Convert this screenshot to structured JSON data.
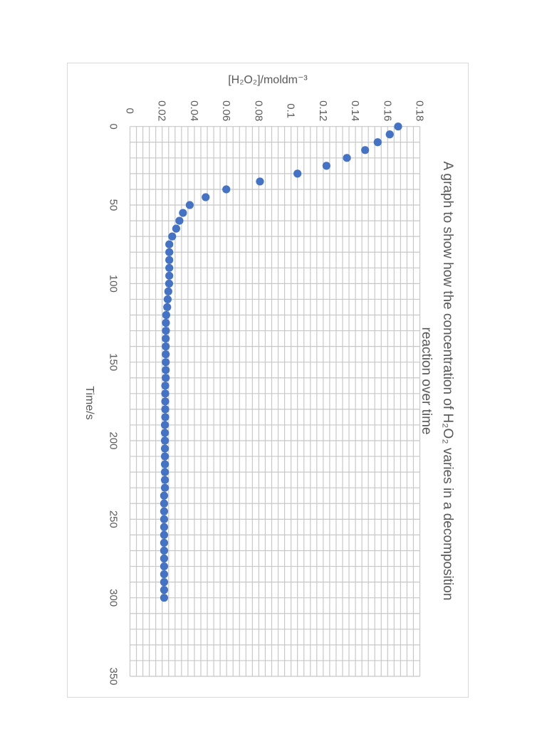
{
  "chart_data": {
    "type": "scatter",
    "title": "A graph to show how the concentration of H₂O₂ varies in a decomposition reaction over time",
    "title_lines": [
      "A graph to show how the concentration of H₂O₂ varies in a decomposition",
      "reaction over time"
    ],
    "xlabel": "Time/s",
    "ylabel": "[H₂O₂]/moldm⁻³",
    "xlim": [
      0,
      350
    ],
    "ylim": [
      0,
      0.18
    ],
    "x_ticks": [
      0,
      50,
      100,
      150,
      200,
      250,
      300,
      350
    ],
    "y_ticks": [
      0,
      0.02,
      0.04,
      0.06,
      0.08,
      0.1,
      0.12,
      0.14,
      0.16,
      0.18
    ],
    "y_tick_labels": [
      "0",
      "0.02",
      "0.04",
      "0.06",
      "0.08",
      "0.1",
      "0.12",
      "0.14",
      "0.16",
      "0.18"
    ],
    "x_tick_labels": [
      "0",
      "50",
      "100",
      "150",
      "200",
      "250",
      "300",
      "350"
    ],
    "grid": true,
    "minor_grid": {
      "x_step": 10,
      "y_step": 0.004
    },
    "orientation": "rotated 90° clockwise (time axis vertical, concentration axis horizontal)",
    "legend": null,
    "series": [
      {
        "name": "[H2O2]",
        "color": "#4472c4",
        "x": [
          0,
          5,
          10,
          15,
          20,
          25,
          30,
          35,
          40,
          45,
          50,
          55,
          60,
          65,
          70,
          75,
          80,
          85,
          90,
          95,
          100,
          105,
          110,
          115,
          120,
          125,
          130,
          135,
          140,
          145,
          150,
          155,
          160,
          165,
          170,
          175,
          180,
          185,
          190,
          195,
          200,
          205,
          210,
          215,
          220,
          225,
          230,
          235,
          240,
          245,
          250,
          255,
          260,
          265,
          270,
          275,
          280,
          285,
          290,
          295,
          300
        ],
        "values": [
          0.1665,
          0.1613,
          0.1538,
          0.146,
          0.1347,
          0.122,
          0.104,
          0.0807,
          0.0598,
          0.047,
          0.0371,
          0.0329,
          0.0307,
          0.0287,
          0.0262,
          0.0244,
          0.0244,
          0.0244,
          0.0244,
          0.0244,
          0.0243,
          0.0238,
          0.0234,
          0.0231,
          0.0225,
          0.0223,
          0.0223,
          0.0222,
          0.0222,
          0.0222,
          0.0222,
          0.0222,
          0.0222,
          0.0219,
          0.0219,
          0.0219,
          0.0219,
          0.0219,
          0.0217,
          0.0217,
          0.0217,
          0.0217,
          0.0217,
          0.0217,
          0.0217,
          0.0217,
          0.0217,
          0.0212,
          0.0212,
          0.0212,
          0.0212,
          0.0212,
          0.0212,
          0.0212,
          0.0212,
          0.0212,
          0.0212,
          0.0212,
          0.0212,
          0.0212,
          0.0212
        ]
      }
    ]
  },
  "colors": {
    "marker": "#4472c4",
    "grid": "#c8c8c8",
    "text": "#595959",
    "frame_border": "#d9d9d9"
  }
}
